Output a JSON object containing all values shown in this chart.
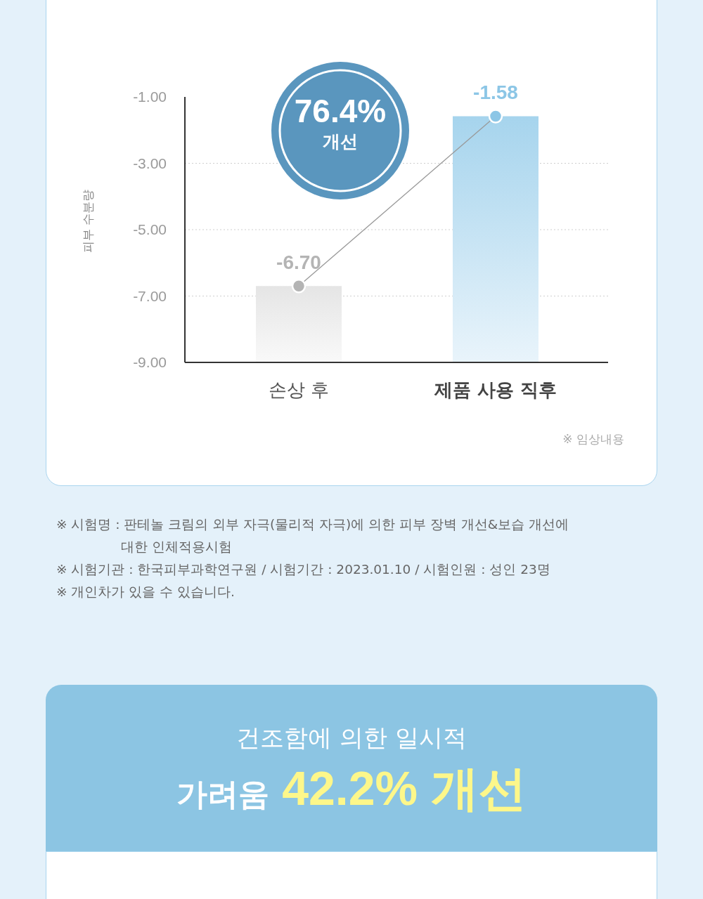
{
  "chart_data": {
    "type": "bar",
    "ylabel": "피부 수분량",
    "categories": [
      "손상 후",
      "제품 사용 직후"
    ],
    "series": [
      {
        "values": [
          2.3,
          7.42
        ],
        "base": [
          -9,
          -9
        ],
        "colors": [
          "#e5e5e5",
          "#a6d4ed"
        ]
      },
      {
        "type": "line",
        "values": [
          -6.7,
          -1.58
        ],
        "color": "#999999",
        "colors": [
          "#b4b4b4",
          "#8cc6e6"
        ],
        "value_labels": [
          "-6.70",
          "-1.58"
        ]
      }
    ],
    "ylim": [
      -9,
      -1
    ],
    "yticks": [
      {
        "value": -9,
        "label": "-9.00"
      },
      {
        "value": -7,
        "label": "-7.00"
      },
      {
        "value": -5,
        "label": "-5.00"
      },
      {
        "value": -3,
        "label": "-3.00"
      },
      {
        "value": -1,
        "label": "-1.00"
      }
    ],
    "grid": "y",
    "marker": "circle",
    "annotations": [
      "76.4%",
      "개선",
      "※ 임상내용",
      "※ 시험명 : 판테놀 크림의 외부 자극(물리적 자극)에 의한 피부 장벽 개선&보습 개선에 대한 인체적용시험",
      "※ 시험기관 : 한국피부과학연구원 / 시험기간 : 2023.01.10 / 시험인원 : 성인 23명",
      "※ 개인차가 있을 수 있습니다.",
      "건조함에 의한 일시적",
      "가려움",
      "42.2% 개선"
    ]
  }
}
